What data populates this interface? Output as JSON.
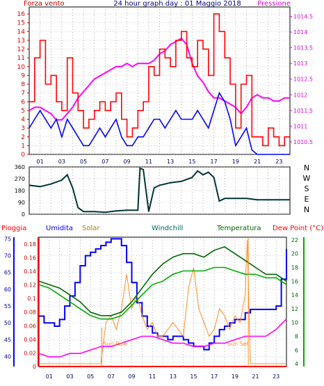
{
  "chart_data": [
    {
      "type": "line",
      "panel": "wind-pressure",
      "title": "24 hour graph day : 01 Maggio 2018",
      "left_label": "Forza vento",
      "right_label": "Pressione",
      "y_left": {
        "ticks": [
          0,
          1,
          2,
          3,
          4,
          5,
          6,
          7,
          8,
          9,
          10,
          11,
          12,
          13,
          14,
          15,
          16
        ],
        "lim": [
          0,
          16.8
        ]
      },
      "y_right": {
        "ticks": [
          "1010.5",
          "1011",
          "1011.5",
          "1012",
          "1012.5",
          "1013",
          "1013.5",
          "1014",
          "1014.5"
        ],
        "lim": [
          1010.1,
          1014.8
        ]
      },
      "x_ticks": [
        "01",
        "03",
        "05",
        "07",
        "09",
        "11",
        "13",
        "15",
        "17",
        "19",
        "21",
        "23"
      ],
      "x_lim": [
        0,
        24
      ],
      "series": [
        {
          "name": "Pressione",
          "color": "#ff00ff",
          "axis": "right",
          "x": [
            0,
            0.5,
            1,
            1.5,
            2,
            2.5,
            3,
            3.5,
            4,
            4.5,
            5,
            5.5,
            6,
            6.5,
            7,
            7.5,
            8,
            8.5,
            9,
            9.5,
            10,
            10.5,
            11,
            11.5,
            12,
            12.5,
            13,
            13.5,
            14,
            14.5,
            15,
            15.5,
            16,
            16.5,
            17,
            17.5,
            18,
            18.5,
            19,
            19.5,
            20,
            20.5,
            21,
            21.5,
            22,
            22.5,
            23,
            23.5,
            24
          ],
          "y": [
            1011.5,
            1011.6,
            1011.6,
            1011.5,
            1011.4,
            1011.2,
            1011.2,
            1011.4,
            1011.6,
            1011.9,
            1012.1,
            1012.3,
            1012.5,
            1012.6,
            1012.7,
            1012.8,
            1012.9,
            1012.9,
            1013.0,
            1012.9,
            1013.0,
            1013.0,
            1013.0,
            1013.1,
            1013.3,
            1013.4,
            1013.6,
            1013.7,
            1013.8,
            1013.6,
            1013.0,
            1012.6,
            1012.4,
            1012.1,
            1011.9,
            1011.9,
            1011.8,
            1011.7,
            1011.6,
            1011.4,
            1011.6,
            1011.9,
            1012.0,
            1011.9,
            1011.9,
            1011.8,
            1011.8,
            1011.9,
            1011.9
          ]
        },
        {
          "name": "Forza vento (medio)",
          "color": "#0000ff",
          "axis": "left",
          "x": [
            0,
            0.5,
            1,
            1.5,
            2,
            2.5,
            3,
            3.5,
            4,
            4.5,
            5,
            5.5,
            6,
            6.5,
            7,
            7.5,
            8,
            8.5,
            9,
            9.5,
            10,
            10.5,
            11,
            11.5,
            12,
            12.5,
            13,
            13.5,
            14,
            14.5,
            15,
            15.5,
            16,
            16.5,
            17,
            17.5,
            18,
            18.5,
            19,
            19.5,
            20,
            20.5,
            21,
            21.5,
            22,
            22.5,
            23,
            23.5,
            24
          ],
          "y": [
            3,
            4,
            5,
            4,
            3,
            4,
            2,
            4,
            3,
            2,
            1,
            1,
            2,
            3,
            2,
            3,
            4,
            2,
            1,
            1,
            2,
            2,
            3,
            4,
            4,
            3,
            4,
            5,
            4,
            4,
            4,
            5,
            4,
            3,
            5,
            7,
            6,
            4,
            1,
            2,
            3,
            0.5,
            0,
            0,
            0,
            0,
            0,
            0,
            0
          ]
        },
        {
          "name": "Forza vento (raffica)",
          "color": "#ff0000",
          "axis": "left",
          "x": [
            0,
            0.5,
            1,
            1.5,
            2,
            2.5,
            3,
            3.5,
            4,
            4.5,
            5,
            5.5,
            6,
            6.5,
            7,
            7.5,
            8,
            8.5,
            9,
            9.5,
            10,
            10.5,
            11,
            11.5,
            12,
            12.5,
            13,
            13.5,
            14,
            14.5,
            15,
            15.5,
            16,
            16.5,
            17,
            17.5,
            18,
            18.5,
            19,
            19.5,
            20,
            20.5,
            21,
            21.5,
            22,
            22.5,
            23,
            23.5,
            24
          ],
          "y": [
            6,
            11,
            13,
            8,
            9,
            6,
            5,
            11,
            7,
            5,
            3,
            4,
            5,
            6,
            5,
            6,
            7,
            4,
            2,
            3,
            5,
            6,
            10,
            9,
            12,
            11,
            10,
            13,
            14,
            11,
            10,
            13,
            12,
            9,
            16,
            14,
            11,
            8,
            3,
            8,
            9,
            2,
            2,
            1,
            3,
            2,
            1,
            2,
            2
          ]
        }
      ]
    },
    {
      "type": "line",
      "panel": "wind-direction",
      "y_left": {
        "ticks": [
          0,
          90,
          180,
          270,
          360
        ],
        "lim": [
          0,
          360
        ]
      },
      "y_right_labels": [
        "N",
        "W",
        "S",
        "E",
        "N"
      ],
      "x_lim": [
        0,
        24
      ],
      "series": [
        {
          "name": "Direzione vento",
          "color": "#003333",
          "x": [
            0,
            1,
            2,
            3,
            3.5,
            4,
            4.5,
            5,
            6,
            7,
            8,
            9,
            10,
            10.2,
            10.5,
            11,
            11.5,
            12,
            13,
            14,
            15,
            15.5,
            16,
            16.5,
            17,
            17.5,
            18,
            19,
            20,
            21,
            22,
            23,
            24
          ],
          "y": [
            220,
            210,
            230,
            260,
            300,
            200,
            50,
            20,
            20,
            15,
            25,
            30,
            30,
            350,
            340,
            20,
            200,
            220,
            240,
            250,
            280,
            330,
            300,
            320,
            280,
            100,
            120,
            120,
            120,
            110,
            110,
            110,
            110
          ]
        }
      ]
    },
    {
      "type": "line",
      "panel": "weather",
      "legend": [
        "Pioggia",
        "Umidita",
        "Solar",
        "Windchill",
        "Temperatura",
        "Dew Point (°C)"
      ],
      "y_left_rain": {
        "ticks": [
          0,
          0.02,
          0.04,
          0.06,
          0.08,
          0.1,
          0.12,
          0.14,
          0.16,
          0.18
        ],
        "lim": [
          0,
          0.19
        ]
      },
      "y_left_humidity": {
        "ticks": [
          40,
          45,
          50,
          55,
          60,
          65,
          70,
          75
        ],
        "lim": [
          37,
          75.5
        ]
      },
      "y_right": {
        "ticks": [
          4,
          6,
          8,
          10,
          12,
          14,
          16,
          18,
          20,
          22
        ],
        "lim": [
          3.6,
          22.4
        ]
      },
      "x_ticks": [
        "01",
        "03",
        "05",
        "07",
        "09",
        "11",
        "13",
        "15",
        "17",
        "19",
        "21",
        "23"
      ],
      "x_lim": [
        0,
        24
      ],
      "annotations": [
        "Sun Rise",
        "Sun Set"
      ],
      "series": [
        {
          "name": "Pioggia",
          "color": "#ff0000",
          "axis": "rain",
          "x": [
            0,
            24
          ],
          "y": [
            0,
            0
          ]
        },
        {
          "name": "Umidita",
          "color": "#0000ff",
          "axis": "humidity",
          "x": [
            0,
            0.5,
            1,
            1.5,
            2,
            2.5,
            3,
            3.5,
            4,
            4.5,
            5,
            5.5,
            6,
            6.5,
            7,
            7.5,
            8,
            8.5,
            9,
            9.5,
            10,
            10.5,
            11,
            11.5,
            12,
            12.5,
            13,
            13.5,
            14,
            14.5,
            15,
            15.5,
            16,
            16.5,
            17,
            17.5,
            18,
            18.5,
            19,
            19.5,
            20,
            20.5,
            21,
            21.5,
            22,
            22.5,
            23,
            23.5,
            24
          ],
          "y": [
            52,
            50,
            50,
            49,
            51,
            55,
            58,
            62,
            67,
            70,
            71,
            72,
            73,
            74,
            75,
            75,
            73,
            68,
            62,
            56,
            52,
            49,
            47,
            46,
            46,
            45,
            46,
            46,
            45,
            44,
            43,
            43,
            42,
            44,
            46,
            48,
            49,
            50,
            51,
            51,
            53,
            54,
            54,
            54,
            54,
            54,
            55,
            63,
            72
          ]
        },
        {
          "name": "Solar",
          "color": "#ff8c28",
          "axis": "right",
          "x": [
            0,
            6,
            6.5,
            7,
            7.5,
            8,
            8.5,
            9,
            9.5,
            10,
            10.5,
            11,
            11.5,
            12,
            12.5,
            13,
            13.5,
            14,
            14.5,
            15,
            15.5,
            16,
            16.5,
            17,
            17.5,
            18,
            18.5,
            19,
            19.5,
            20,
            20.2,
            20.5,
            24
          ],
          "y": [
            4,
            4,
            10,
            11,
            9,
            12,
            17,
            12,
            14,
            11,
            9,
            10,
            8,
            8,
            9,
            10,
            9,
            8,
            15,
            18,
            12,
            10,
            8,
            9,
            12,
            11,
            9,
            11,
            10,
            14,
            22,
            4,
            4
          ]
        },
        {
          "name": "Windchill",
          "color": "#00aa00",
          "axis": "right",
          "x": [
            0,
            1,
            2,
            3,
            4,
            5,
            6,
            7,
            8,
            9,
            10,
            11,
            12,
            13,
            14,
            15,
            16,
            17,
            18,
            19,
            20,
            21,
            22,
            23,
            24
          ],
          "y": [
            15.5,
            15,
            14,
            13,
            12,
            11,
            10.5,
            10.5,
            11,
            12.5,
            14,
            15.5,
            16,
            17,
            17.5,
            17.5,
            17.5,
            18,
            18,
            17.5,
            17,
            17,
            16.5,
            16.5,
            15.5
          ]
        },
        {
          "name": "Temperatura",
          "color": "#006600",
          "axis": "right",
          "x": [
            0,
            1,
            2,
            3,
            4,
            5,
            6,
            7,
            8,
            9,
            10,
            11,
            12,
            13,
            14,
            15,
            16,
            17,
            18,
            19,
            20,
            21,
            22,
            23,
            24
          ],
          "y": [
            16,
            15.5,
            15,
            14,
            13,
            11.5,
            11,
            11,
            11.5,
            13,
            15,
            17,
            18.5,
            19.5,
            20,
            20,
            19.5,
            20.5,
            21,
            20,
            19,
            18,
            17,
            17,
            16
          ]
        },
        {
          "name": "Dew Point (°C)",
          "color": "#ff00ff",
          "axis": "right",
          "x": [
            0,
            1,
            2,
            3,
            4,
            5,
            6,
            7,
            8,
            9,
            10,
            11,
            12,
            13,
            14,
            15,
            16,
            17,
            18,
            19,
            20,
            21,
            22,
            23,
            24
          ],
          "y": [
            5.5,
            5,
            5,
            5.5,
            5.5,
            6,
            6.5,
            6.5,
            7,
            7.5,
            8,
            8,
            7.5,
            7,
            7,
            6.5,
            6.5,
            7,
            7,
            7.5,
            8,
            8,
            8,
            9,
            10.5
          ]
        }
      ]
    }
  ]
}
